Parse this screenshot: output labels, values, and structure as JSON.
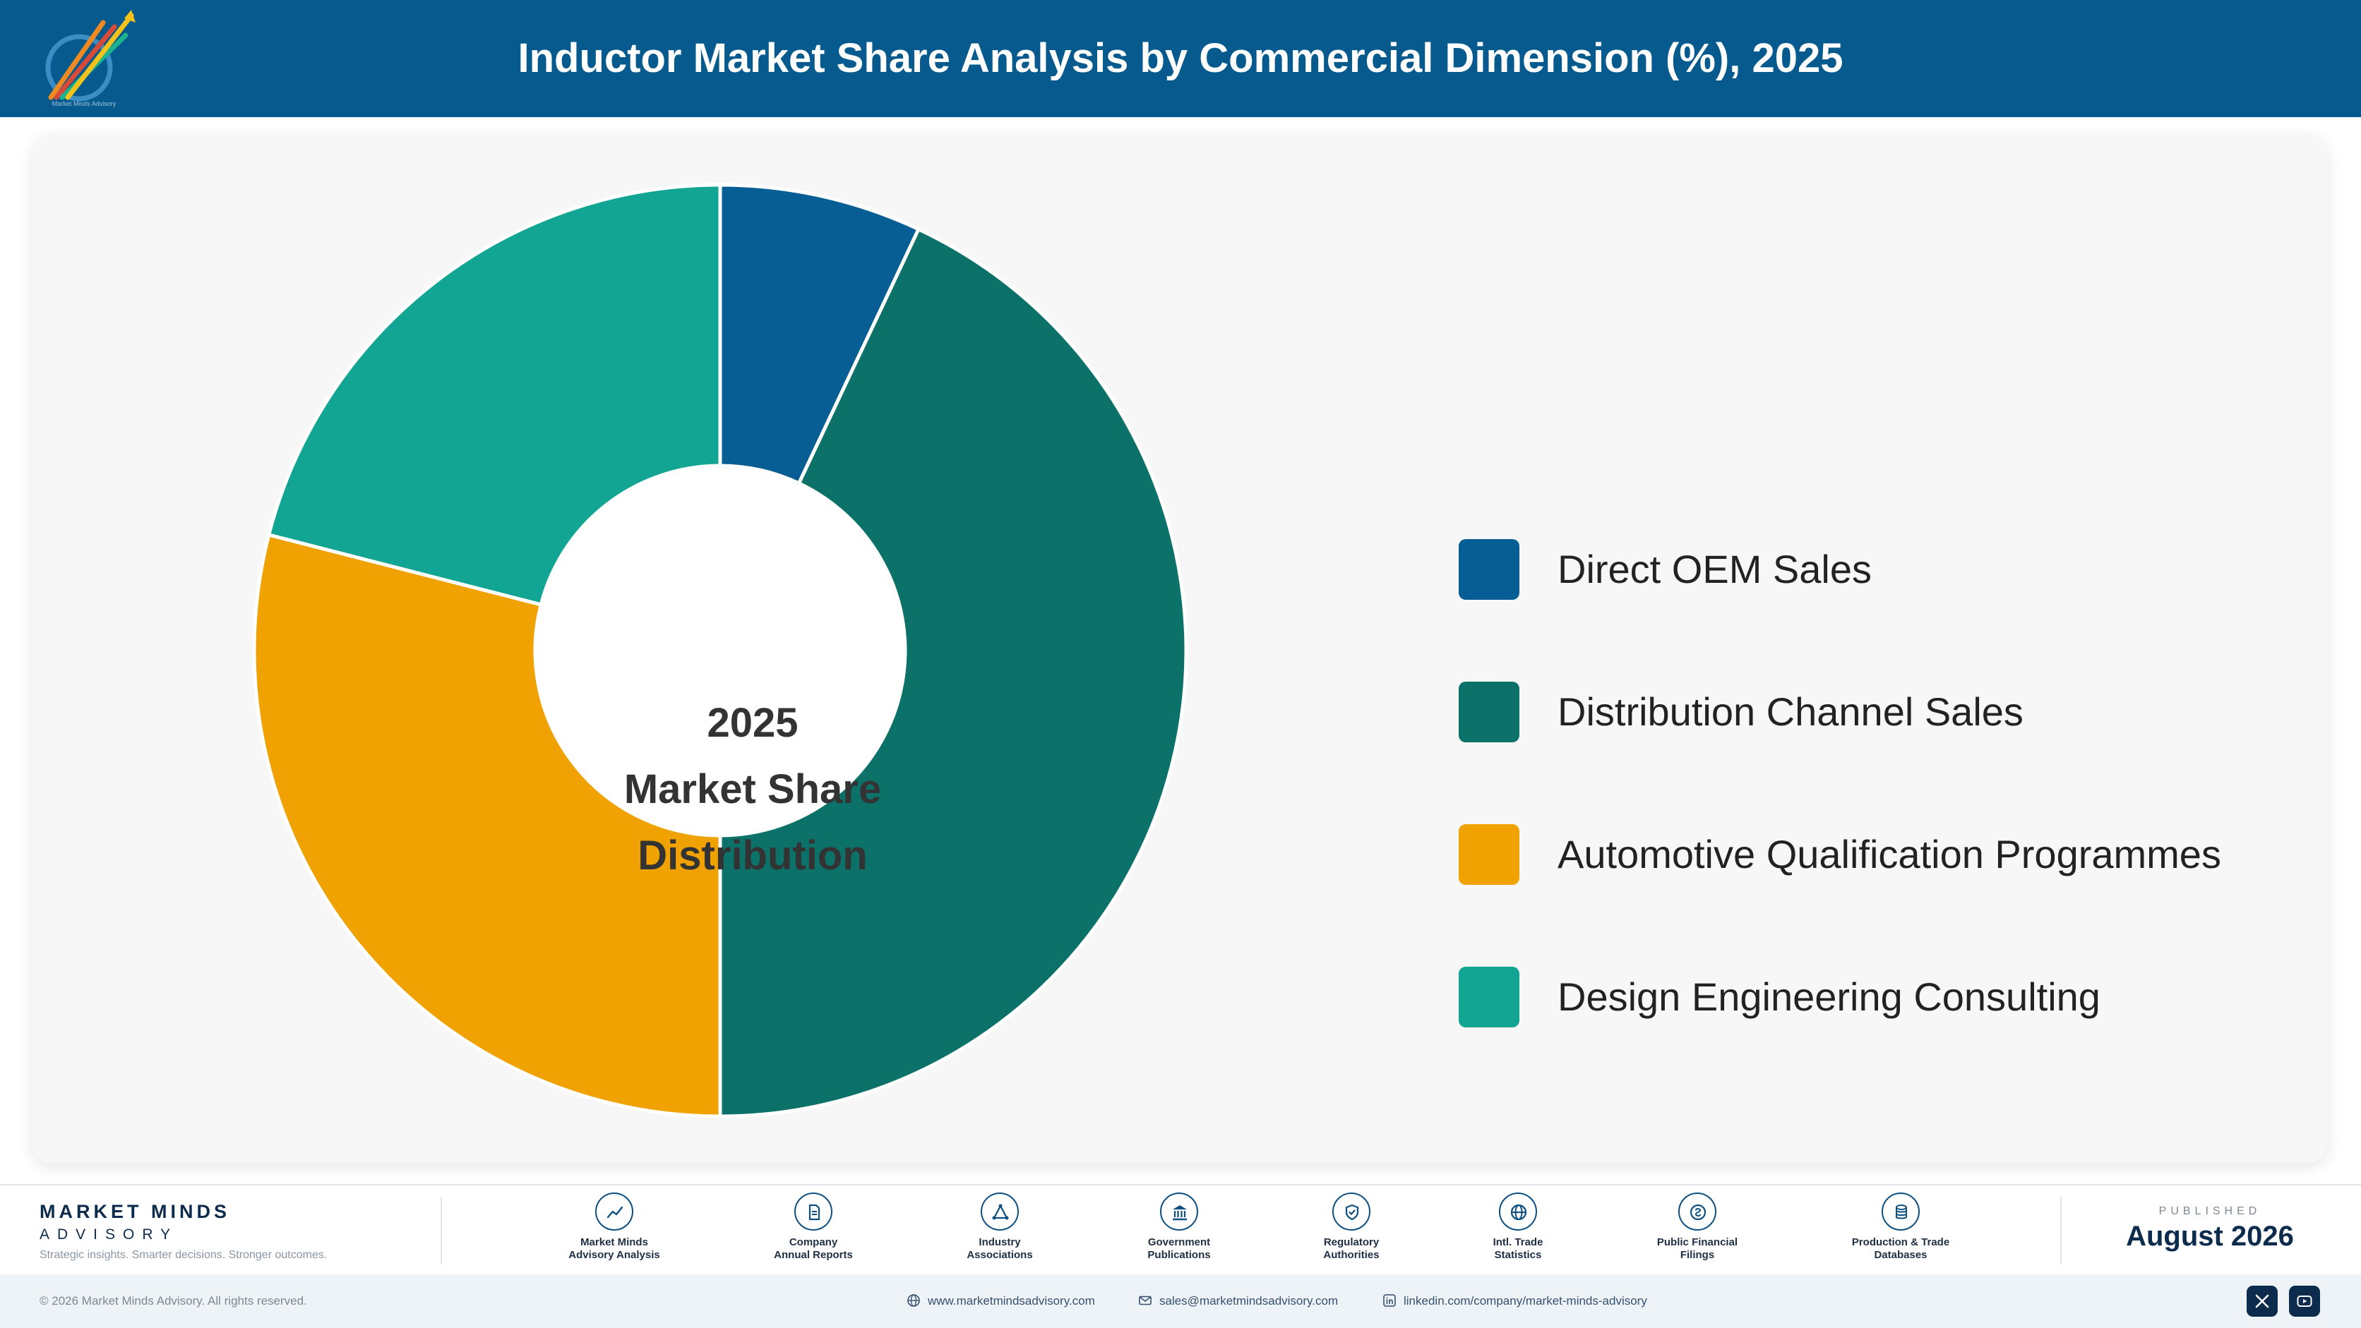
{
  "header": {
    "title": "Inductor Market Share Analysis by Commercial Dimension (%), 2025",
    "logo_caption": "Market Minds Advisory",
    "color": "#075a8d"
  },
  "chart_data": {
    "type": "pie",
    "title": "Inductor Market Share Analysis by Commercial Dimension (%), 2025",
    "center_label": [
      "2025",
      "Market Share",
      "Distribution"
    ],
    "legend_position": "right",
    "donut": true,
    "slices": [
      {
        "label": "Direct OEM Sales",
        "value": 7,
        "color": "#075e94"
      },
      {
        "label": "Distribution Channel Sales",
        "value": 43,
        "color": "#0c7269"
      },
      {
        "label": "Automotive Qualification Programmes",
        "value": 29,
        "color": "#efa202"
      },
      {
        "label": "Design Engineering Consulting",
        "value": 21,
        "color": "#13a594"
      }
    ]
  },
  "footer": {
    "brand_name": "MARKET MINDS",
    "brand_sub": "ADVISORY",
    "tagline": "Strategic insights. Smarter decisions. Stronger outcomes.",
    "sources": [
      {
        "label": "Market Minds\nAdvisory Analysis",
        "icon": "trend-line-icon"
      },
      {
        "label": "Company\nAnnual Reports",
        "icon": "document-icon"
      },
      {
        "label": "Industry\nAssociations",
        "icon": "network-icon"
      },
      {
        "label": "Government\nPublications",
        "icon": "government-building-icon"
      },
      {
        "label": "Regulatory\nAuthorities",
        "icon": "shield-check-icon"
      },
      {
        "label": "Intl. Trade\nStatistics",
        "icon": "globe-icon"
      },
      {
        "label": "Public Financial\nFilings",
        "icon": "coin-icon"
      },
      {
        "label": "Production & Trade\nDatabases",
        "icon": "database-icon"
      }
    ],
    "published_label": "PUBLISHED",
    "published_date": "August 2026",
    "copyright": "© 2026 Market Minds Advisory. All rights reserved.",
    "website": "www.marketmindsadvisory.com",
    "email": "sales@marketmindsadvisory.com",
    "linkedin": "linkedin.com/company/market-minds-advisory",
    "social": [
      "x-icon",
      "youtube-icon"
    ]
  }
}
